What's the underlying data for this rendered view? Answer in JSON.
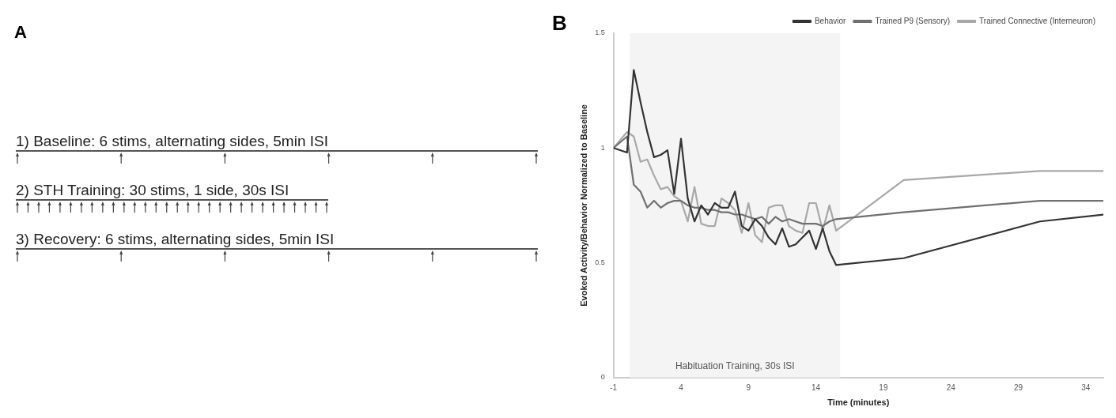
{
  "chart_data": [
    {
      "type": "other",
      "title": "A",
      "annotations": [
        "1) Baseline: 6 stims, alternating sides, 5min ISI",
        "2) STH Training: 30 stims, 1 side, 30s ISI",
        "3) Recovery: 6 stims, alternating sides, 5min ISI"
      ]
    },
    {
      "type": "line",
      "title": "B",
      "xlabel": "Time (minutes)",
      "ylabel": "Evoked Activity/Behavior Normalized to Baseline",
      "x": [
        -1,
        0,
        0.5,
        1,
        1.5,
        2,
        2.5,
        3,
        3.5,
        4,
        4.5,
        5,
        5.5,
        6,
        6.5,
        7,
        7.5,
        8,
        8.5,
        9,
        9.5,
        10,
        10.5,
        11,
        11.5,
        12,
        12.5,
        13,
        13.5,
        14,
        14.5,
        15,
        15.5,
        20.5,
        30.6,
        35.3
      ],
      "series": [
        {
          "name": "Behavior",
          "color": "#333333",
          "values": [
            1.0,
            0.98,
            1.34,
            1.2,
            1.07,
            0.96,
            0.97,
            0.99,
            0.8,
            1.04,
            0.78,
            0.68,
            0.75,
            0.71,
            0.76,
            0.74,
            0.74,
            0.81,
            0.66,
            0.64,
            0.69,
            0.66,
            0.61,
            0.58,
            0.65,
            0.57,
            0.58,
            0.61,
            0.64,
            0.56,
            0.65,
            0.55,
            0.49,
            0.52,
            0.68,
            0.71
          ]
        },
        {
          "name": "Trained P9 (Sensory)",
          "color": "#707070",
          "values": [
            1.0,
            1.05,
            0.84,
            0.81,
            0.74,
            0.77,
            0.74,
            0.76,
            0.77,
            0.77,
            0.75,
            0.74,
            0.74,
            0.73,
            0.73,
            0.72,
            0.72,
            0.71,
            0.71,
            0.7,
            0.69,
            0.7,
            0.67,
            0.7,
            0.68,
            0.69,
            0.68,
            0.67,
            0.67,
            0.67,
            0.66,
            0.68,
            0.69,
            0.72,
            0.77,
            0.77
          ]
        },
        {
          "name": "Trained Connective (Interneuron)",
          "color": "#a8a8a8",
          "values": [
            1.0,
            1.07,
            1.05,
            0.94,
            0.95,
            0.88,
            0.82,
            0.83,
            0.79,
            0.77,
            0.68,
            0.83,
            0.67,
            0.66,
            0.66,
            0.78,
            0.76,
            0.73,
            0.63,
            0.76,
            0.62,
            0.59,
            0.74,
            0.75,
            0.75,
            0.66,
            0.64,
            0.63,
            0.76,
            0.76,
            0.64,
            0.75,
            0.64,
            0.86,
            0.9,
            0.9
          ]
        }
      ],
      "xlim": [
        -1,
        35.3
      ],
      "xticks": [
        -1,
        4,
        9,
        14,
        19,
        24,
        29,
        34
      ],
      "ylim": [
        0,
        1.5
      ],
      "yticks": [
        0,
        0.5,
        1,
        1.5
      ],
      "bands": [
        {
          "axis": "x",
          "from": 0.2,
          "to": 15.8,
          "label": "Habituation Training, 30s ISI",
          "color": "#f4f4f4"
        }
      ],
      "legend": "top right",
      "grid": false,
      "marker": "none",
      "line_style": "solid"
    }
  ]
}
